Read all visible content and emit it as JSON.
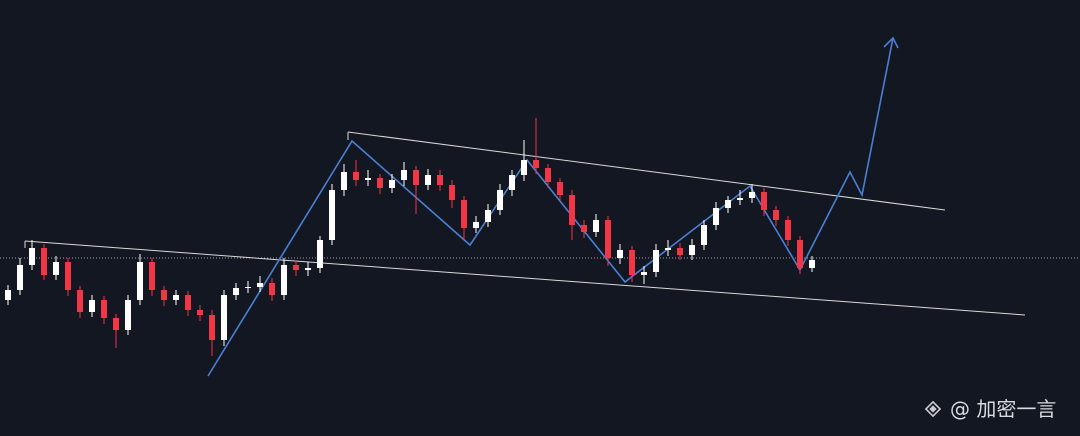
{
  "chart_data": {
    "type": "candlestick",
    "ylim": [
      0,
      436
    ],
    "up_color": "#ffffff",
    "down_color": "#f23645",
    "open": [
      136,
      146,
      171,
      188,
      161,
      174,
      146,
      124,
      136,
      118,
      106,
      136,
      174,
      146,
      136,
      141,
      126,
      121,
      96,
      141,
      148,
      149,
      153,
      141,
      171,
      166,
      168,
      196,
      246,
      264,
      256,
      258,
      248,
      256,
      266,
      251,
      261,
      251,
      236,
      208,
      214,
      226,
      246,
      261,
      276,
      268,
      254,
      241,
      211,
      204,
      216,
      178,
      186,
      161,
      164,
      186,
      188,
      181,
      191,
      211,
      228,
      236,
      238,
      244,
      226,
      216,
      196,
      168
    ],
    "close": [
      146,
      171,
      188,
      161,
      174,
      146,
      124,
      136,
      118,
      106,
      136,
      174,
      146,
      136,
      141,
      126,
      121,
      96,
      141,
      148,
      149,
      153,
      141,
      171,
      166,
      168,
      196,
      246,
      264,
      256,
      258,
      248,
      256,
      266,
      251,
      261,
      251,
      236,
      208,
      214,
      226,
      246,
      261,
      276,
      268,
      254,
      241,
      211,
      204,
      216,
      178,
      186,
      161,
      164,
      186,
      188,
      181,
      191,
      211,
      228,
      236,
      238,
      244,
      226,
      216,
      196,
      168,
      176
    ],
    "high": [
      151,
      178,
      196,
      192,
      180,
      178,
      150,
      141,
      140,
      122,
      141,
      182,
      178,
      150,
      146,
      145,
      131,
      126,
      146,
      153,
      155,
      160,
      158,
      178,
      176,
      174,
      200,
      252,
      272,
      276,
      266,
      262,
      262,
      274,
      270,
      267,
      266,
      256,
      240,
      220,
      232,
      252,
      266,
      296,
      318,
      272,
      258,
      246,
      216,
      222,
      220,
      192,
      190,
      170,
      192,
      196,
      193,
      197,
      216,
      234,
      240,
      246,
      252,
      248,
      230,
      220,
      200,
      180
    ],
    "low": [
      131,
      141,
      166,
      156,
      156,
      140,
      118,
      119,
      112,
      88,
      101,
      131,
      140,
      130,
      131,
      120,
      115,
      80,
      90,
      136,
      143,
      144,
      135,
      136,
      160,
      160,
      163,
      191,
      240,
      250,
      250,
      242,
      243,
      250,
      222,
      246,
      245,
      228,
      196,
      203,
      209,
      221,
      240,
      255,
      262,
      248,
      235,
      196,
      198,
      199,
      170,
      172,
      154,
      152,
      159,
      180,
      176,
      176,
      186,
      206,
      223,
      231,
      233,
      220,
      210,
      190,
      162,
      164
    ],
    "watermark": "@ 加密一言"
  }
}
